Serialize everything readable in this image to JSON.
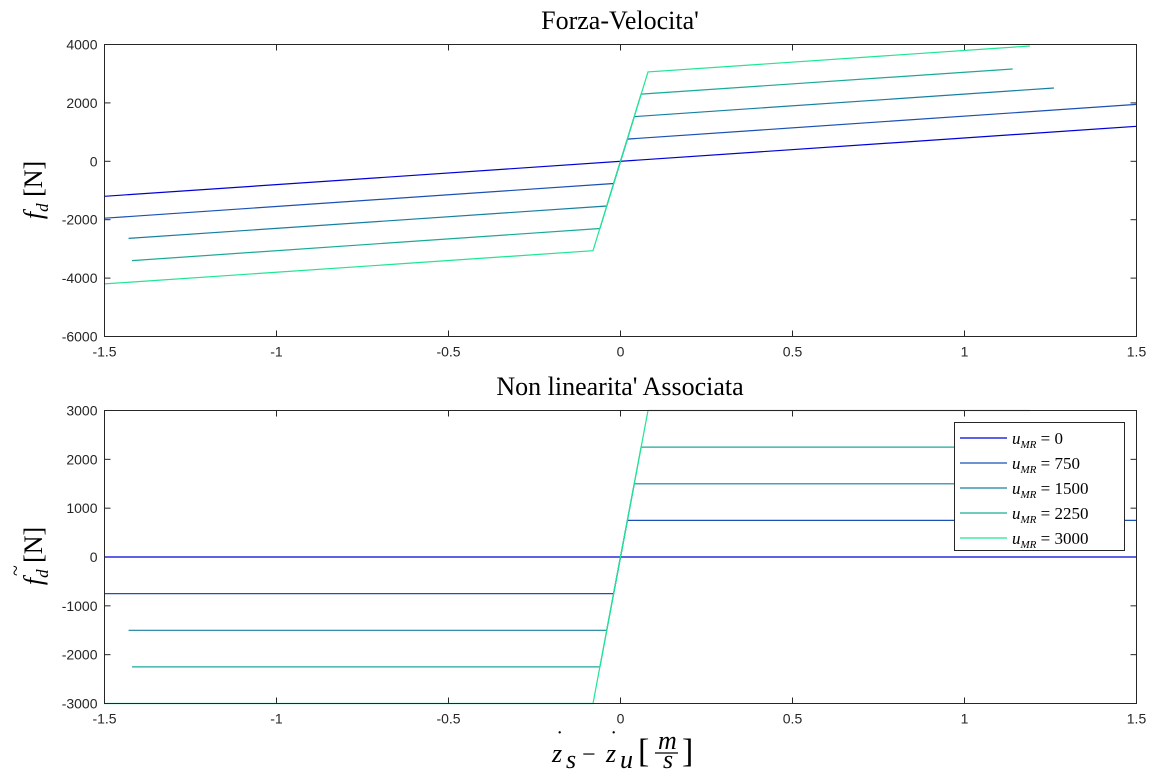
{
  "chart_data": [
    {
      "type": "line",
      "title": "Forza-Velocita'",
      "ylabel": "f_d [N]",
      "xlabel": "",
      "xlim": [
        -1.5,
        1.5
      ],
      "ylim": [
        -6000,
        4000
      ],
      "xticks": [
        -1.5,
        -1,
        -0.5,
        0,
        0.5,
        1,
        1.5
      ],
      "yticks": [
        -6000,
        -4000,
        -2000,
        0,
        2000,
        4000
      ],
      "xtick_labels": [
        "-1.5",
        "-1",
        "-0.5",
        "0",
        "0.5",
        "1",
        "1.5"
      ],
      "ytick_labels": [
        "-6000",
        "-4000",
        "-2000",
        "0",
        "2000",
        "4000"
      ],
      "grid": false,
      "series": [
        {
          "name": "u_MR = 0",
          "color": "#0000d6",
          "x": [
            -1.5,
            1.5
          ],
          "y": [
            -1200,
            1200
          ]
        },
        {
          "name": "u_MR = 750",
          "color": "#1b50b4",
          "x": [
            -1.5,
            -0.02,
            0.02,
            1.5
          ],
          "y": [
            -1950,
            -760,
            760,
            1950
          ]
        },
        {
          "name": "u_MR = 1500",
          "color": "#177fa0",
          "x": [
            -1.43,
            -0.04,
            0.04,
            1.26
          ],
          "y": [
            -2640,
            -1530,
            1530,
            2510
          ]
        },
        {
          "name": "u_MR = 2250",
          "color": "#1aaa98",
          "x": [
            -1.42,
            -0.06,
            0.06,
            1.14
          ],
          "y": [
            -3400,
            -2300,
            2300,
            3160
          ]
        },
        {
          "name": "u_MR = 3000",
          "color": "#1ee693",
          "x": [
            -1.5,
            -0.08,
            0.08,
            1.19
          ],
          "y": [
            -4200,
            -3060,
            3060,
            3950
          ]
        }
      ]
    },
    {
      "type": "line",
      "title": "Non linearita' Associata",
      "ylabel": "f~_d [N]",
      "xlabel": "ż_s − ż_u [m/s]",
      "xlim": [
        -1.5,
        1.5
      ],
      "ylim": [
        -3000,
        3000
      ],
      "xticks": [
        -1.5,
        -1,
        -0.5,
        0,
        0.5,
        1,
        1.5
      ],
      "yticks": [
        -3000,
        -2000,
        -1000,
        0,
        1000,
        2000,
        3000
      ],
      "xtick_labels": [
        "-1.5",
        "-1",
        "-0.5",
        "0",
        "0.5",
        "1",
        "1.5"
      ],
      "ytick_labels": [
        "-3000",
        "-2000",
        "-1000",
        "0",
        "1000",
        "2000",
        "3000"
      ],
      "grid": false,
      "legend_position": "top-right",
      "series": [
        {
          "name": "u_MR = 0",
          "color": "#0000d6",
          "x": [
            -1.5,
            1.5
          ],
          "y": [
            0,
            0
          ]
        },
        {
          "name": "u_MR = 750",
          "color": "#1b50b4",
          "x": [
            -1.5,
            -0.02,
            0.02,
            1.5
          ],
          "y": [
            -750,
            -750,
            750,
            750
          ]
        },
        {
          "name": "u_MR = 1500",
          "color": "#177fa0",
          "x": [
            -1.43,
            -0.04,
            0.04,
            1.26
          ],
          "y": [
            -1500,
            -1500,
            1500,
            1500
          ]
        },
        {
          "name": "u_MR = 2250",
          "color": "#1aaa98",
          "x": [
            -1.42,
            -0.06,
            0.06,
            1.14
          ],
          "y": [
            -2250,
            -2250,
            2250,
            2250
          ]
        },
        {
          "name": "u_MR = 3000",
          "color": "#1ee693",
          "x": [
            -1.5,
            -0.08,
            0.08,
            1.19
          ],
          "y": [
            -3000,
            -3000,
            3000,
            3000
          ]
        }
      ]
    }
  ],
  "legend": {
    "entries": [
      "u_MR = 0",
      "u_MR = 750",
      "u_MR = 1500",
      "u_MR = 2250",
      "u_MR = 3000"
    ],
    "values": [
      "0",
      "750",
      "1500",
      "2250",
      "3000"
    ],
    "colors": [
      "#0000d6",
      "#1b50b4",
      "#177fa0",
      "#1aaa98",
      "#1ee693"
    ]
  }
}
